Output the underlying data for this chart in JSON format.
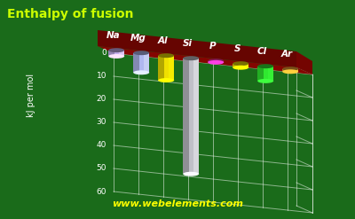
{
  "title": "Enthalpy of fusion",
  "ylabel": "kJ per mol",
  "website": "www.webelements.com",
  "elements": [
    "Na",
    "Mg",
    "Al",
    "Si",
    "P",
    "S",
    "Cl",
    "Ar"
  ],
  "values": [
    2.6,
    8.5,
    10.7,
    50.2,
    0.64,
    1.73,
    6.41,
    1.19
  ],
  "colors": [
    "#c8b0f0",
    "#b0b8f0",
    "#f0e000",
    "#c0c0c8",
    "#ff30b0",
    "#f0e000",
    "#30e830",
    "#f0a030"
  ],
  "background_color": "#1a6b1a",
  "floor_color": "#8b0000",
  "title_color": "#ccff00",
  "axis_color": "#ffffff",
  "website_color": "#ffff00",
  "ylim": [
    0,
    60
  ],
  "yticks": [
    0,
    10,
    20,
    30,
    40,
    50,
    60
  ]
}
